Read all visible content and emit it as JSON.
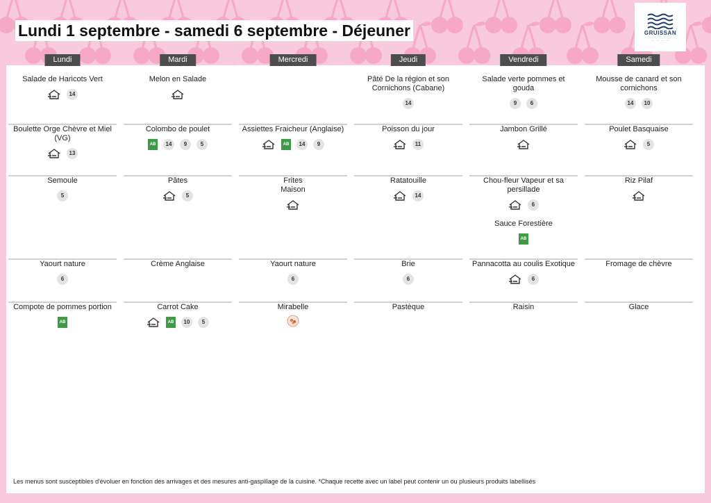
{
  "title": "Lundi 1 septembre - samedi 6 septembre  - Déjeuner",
  "logo": {
    "name": "GRUISSAN"
  },
  "colors": {
    "background": "#f9c9de",
    "pattern": "#f5a9c7",
    "header": "#4d4d4d",
    "bio": "#3e9b45",
    "logo": "#1f3a6e"
  },
  "days": [
    {
      "label": "Lundi",
      "rows": [
        [
          {
            "name": "Salade de Haricots Vert",
            "icons": [
              "house"
            ],
            "badges": [
              "14"
            ]
          }
        ],
        [
          {
            "name": "Boulette Orge Chèvre et Miel (VG)",
            "icons": [
              "house"
            ],
            "badges": [
              "13"
            ]
          }
        ],
        [
          {
            "name": "Semoule",
            "icons": [],
            "badges": [
              "5"
            ]
          }
        ],
        [
          {
            "name": "Yaourt nature",
            "icons": [],
            "badges": [
              "6"
            ]
          }
        ],
        [
          {
            "name": "Compote de pommes portion",
            "icons": [
              "bio"
            ],
            "badges": []
          }
        ]
      ]
    },
    {
      "label": "Mardi",
      "rows": [
        [
          {
            "name": "Melon en Salade",
            "icons": [
              "house"
            ],
            "badges": []
          }
        ],
        [
          {
            "name": "Colombo de poulet",
            "icons": [
              "bio"
            ],
            "badges": [
              "14",
              "9",
              "5"
            ]
          }
        ],
        [
          {
            "name": "Pâtes",
            "icons": [
              "house"
            ],
            "badges": [
              "5"
            ]
          }
        ],
        [
          {
            "name": "Crème Anglaise",
            "icons": [],
            "badges": []
          }
        ],
        [
          {
            "name": "Carrot Cake",
            "icons": [
              "house",
              "bio"
            ],
            "badges": [
              "10",
              "5"
            ]
          }
        ]
      ]
    },
    {
      "label": "Mercredi",
      "rows": [
        [],
        [
          {
            "name": "Assiettes Fraicheur (Anglaise)",
            "icons": [
              "house",
              "bio"
            ],
            "badges": [
              "14",
              "9"
            ]
          }
        ],
        [
          {
            "name": "Frites Maison",
            "icons": [
              "house"
            ],
            "badges": []
          }
        ],
        [
          {
            "name": "Yaourt nature",
            "icons": [],
            "badges": [
              "6"
            ]
          }
        ],
        [
          {
            "name": "Mirabelle",
            "icons": [
              "fruit"
            ],
            "badges": []
          }
        ]
      ]
    },
    {
      "label": "Jeudi",
      "rows": [
        [
          {
            "name": "Pâté De la région et son Cornichons (Cabane)",
            "icons": [],
            "badges": [
              "14"
            ]
          }
        ],
        [
          {
            "name": "Poisson du jour",
            "icons": [
              "house"
            ],
            "badges": [
              "11"
            ]
          }
        ],
        [
          {
            "name": "Ratatouille",
            "icons": [
              "house"
            ],
            "badges": [
              "14"
            ]
          }
        ],
        [
          {
            "name": "Brie",
            "icons": [],
            "badges": [
              "6"
            ]
          }
        ],
        [
          {
            "name": "Pastèque",
            "icons": [],
            "badges": []
          }
        ]
      ]
    },
    {
      "label": "Vendredi",
      "rows": [
        [
          {
            "name": "Salade verte pommes et gouda",
            "icons": [],
            "badges": [
              "9",
              "6"
            ]
          }
        ],
        [
          {
            "name": "Jambon Grillé",
            "icons": [
              "house"
            ],
            "badges": []
          }
        ],
        [
          {
            "name": "Chou-fleur Vapeur et sa persillade",
            "icons": [
              "house"
            ],
            "badges": [
              "6"
            ]
          },
          {
            "name": "Sauce Forestière",
            "icons": [
              "bio"
            ],
            "badges": []
          }
        ],
        [
          {
            "name": "Pannacotta au coulis Exotique",
            "icons": [
              "house"
            ],
            "badges": [
              "6"
            ]
          }
        ],
        [
          {
            "name": "Raisin",
            "icons": [],
            "badges": []
          }
        ]
      ]
    },
    {
      "label": "Samedi",
      "rows": [
        [
          {
            "name": "Mousse de canard et son cornichons",
            "icons": [],
            "badges": [
              "14",
              "10"
            ]
          }
        ],
        [
          {
            "name": "Poulet Basquaise",
            "icons": [
              "house"
            ],
            "badges": [
              "5"
            ]
          }
        ],
        [
          {
            "name": "Riz Pilaf",
            "icons": [
              "house"
            ],
            "badges": []
          }
        ],
        [
          {
            "name": "Fromage de chèvre",
            "icons": [],
            "badges": []
          }
        ],
        [
          {
            "name": "Glace",
            "icons": [],
            "badges": []
          }
        ]
      ]
    }
  ],
  "footer": "Les menus sont susceptibles d'évoluer en fonction des arrivages et des mesures anti-gaspillage de la cuisine. *Chaque recette avec un label peut contenir un ou plusieurs produits labellisés"
}
